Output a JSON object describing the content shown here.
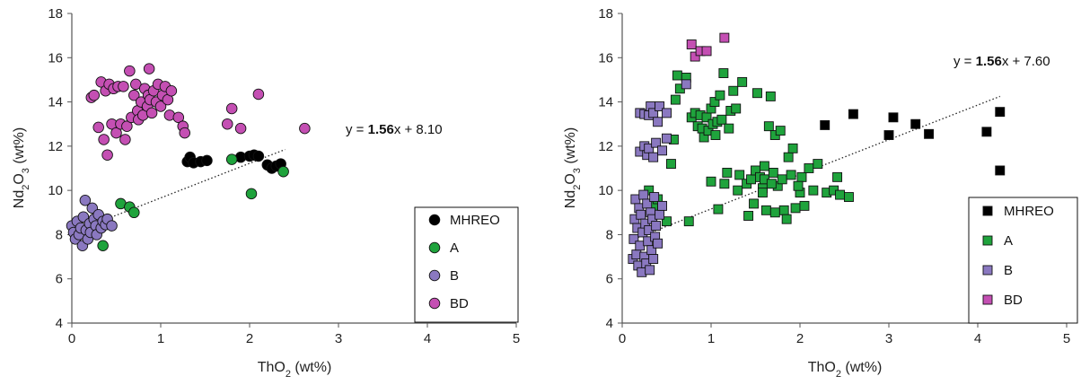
{
  "chart_data": [
    {
      "type": "scatter",
      "marker": "circle",
      "xlabel": "ThO2 (wt%)",
      "ylabel": "Nd2O3 (wt%)",
      "xlim": [
        0,
        5
      ],
      "ylim": [
        4,
        18
      ],
      "xticks": [
        "0",
        "1",
        "2",
        "3",
        "4",
        "5"
      ],
      "yticks": [
        "4",
        "6",
        "8",
        "10",
        "12",
        "14",
        "16",
        "18"
      ],
      "grid": false,
      "legend_position": "bottom-right",
      "equation": {
        "prefix": "y = ",
        "slope": "1.56",
        "suffix": "x + 8.10"
      },
      "trendline": {
        "x": [
          0.1,
          2.4
        ],
        "y": [
          8.25,
          11.85
        ]
      },
      "series": [
        {
          "name": "MHREO",
          "color": "#000000",
          "points": [
            [
              1.3,
              11.3
            ],
            [
              1.33,
              11.5
            ],
            [
              1.37,
              11.25
            ],
            [
              1.45,
              11.3
            ],
            [
              1.52,
              11.35
            ],
            [
              1.9,
              11.5
            ],
            [
              2.0,
              11.55
            ],
            [
              2.05,
              11.6
            ],
            [
              2.1,
              11.55
            ],
            [
              2.2,
              11.15
            ],
            [
              2.25,
              11.0
            ],
            [
              2.3,
              11.1
            ],
            [
              2.35,
              11.2
            ]
          ]
        },
        {
          "name": "A",
          "color": "#1fa33c",
          "points": [
            [
              0.35,
              7.5
            ],
            [
              0.55,
              9.4
            ],
            [
              0.65,
              9.25
            ],
            [
              0.7,
              9.0
            ],
            [
              1.8,
              11.4
            ],
            [
              2.02,
              9.85
            ],
            [
              2.38,
              10.85
            ]
          ]
        },
        {
          "name": "B",
          "color": "#8a78c0",
          "points": [
            [
              0.0,
              8.4
            ],
            [
              0.02,
              8.1
            ],
            [
              0.04,
              7.8
            ],
            [
              0.06,
              8.6
            ],
            [
              0.08,
              8.0
            ],
            [
              0.1,
              8.3
            ],
            [
              0.12,
              7.5
            ],
            [
              0.13,
              8.8
            ],
            [
              0.15,
              9.55
            ],
            [
              0.16,
              8.2
            ],
            [
              0.18,
              7.8
            ],
            [
              0.2,
              8.5
            ],
            [
              0.21,
              8.1
            ],
            [
              0.23,
              9.2
            ],
            [
              0.25,
              8.7
            ],
            [
              0.27,
              8.4
            ],
            [
              0.28,
              8.0
            ],
            [
              0.3,
              8.9
            ],
            [
              0.33,
              8.3
            ],
            [
              0.35,
              8.6
            ],
            [
              0.38,
              8.45
            ],
            [
              0.4,
              8.7
            ],
            [
              0.45,
              8.4
            ]
          ]
        },
        {
          "name": "BD",
          "color": "#c44fb3",
          "points": [
            [
              0.22,
              14.2
            ],
            [
              0.25,
              14.3
            ],
            [
              0.3,
              12.85
            ],
            [
              0.33,
              14.9
            ],
            [
              0.36,
              12.3
            ],
            [
              0.38,
              14.5
            ],
            [
              0.4,
              11.6
            ],
            [
              0.42,
              14.8
            ],
            [
              0.45,
              13.0
            ],
            [
              0.47,
              14.6
            ],
            [
              0.5,
              12.6
            ],
            [
              0.52,
              14.7
            ],
            [
              0.55,
              13.0
            ],
            [
              0.58,
              14.7
            ],
            [
              0.6,
              12.3
            ],
            [
              0.62,
              12.9
            ],
            [
              0.65,
              15.4
            ],
            [
              0.67,
              13.3
            ],
            [
              0.7,
              14.3
            ],
            [
              0.72,
              14.8
            ],
            [
              0.74,
              13.6
            ],
            [
              0.75,
              13.2
            ],
            [
              0.78,
              14.0
            ],
            [
              0.8,
              13.4
            ],
            [
              0.82,
              14.6
            ],
            [
              0.85,
              13.8
            ],
            [
              0.86,
              14.3
            ],
            [
              0.87,
              15.5
            ],
            [
              0.88,
              14.1
            ],
            [
              0.9,
              13.5
            ],
            [
              0.92,
              14.5
            ],
            [
              0.95,
              14.0
            ],
            [
              0.97,
              14.8
            ],
            [
              1.0,
              13.8
            ],
            [
              1.02,
              14.3
            ],
            [
              1.05,
              14.7
            ],
            [
              1.08,
              14.1
            ],
            [
              1.1,
              13.4
            ],
            [
              1.12,
              14.5
            ],
            [
              1.2,
              13.3
            ],
            [
              1.25,
              12.9
            ],
            [
              1.27,
              12.6
            ],
            [
              1.75,
              13.0
            ],
            [
              1.8,
              13.7
            ],
            [
              1.9,
              12.8
            ],
            [
              2.1,
              14.35
            ],
            [
              2.62,
              12.8
            ]
          ]
        }
      ]
    },
    {
      "type": "scatter",
      "marker": "square",
      "xlabel": "ThO2 (wt%)",
      "ylabel": "Nd2O3 (wt%)",
      "xlim": [
        0,
        5
      ],
      "ylim": [
        4,
        18
      ],
      "xticks": [
        "0",
        "1",
        "2",
        "3",
        "4",
        "5"
      ],
      "yticks": [
        "4",
        "6",
        "8",
        "10",
        "12",
        "14",
        "16",
        "18"
      ],
      "grid": false,
      "legend_position": "bottom-right",
      "equation": {
        "prefix": "y = ",
        "slope": "1.56",
        "suffix": "x + 7.60"
      },
      "trendline": {
        "x": [
          0.1,
          4.25
        ],
        "y": [
          7.75,
          14.25
        ]
      },
      "series": [
        {
          "name": "MHREO",
          "color": "#000000",
          "points": [
            [
              2.28,
              12.95
            ],
            [
              2.6,
              13.45
            ],
            [
              3.0,
              12.5
            ],
            [
              3.05,
              13.3
            ],
            [
              3.3,
              13.0
            ],
            [
              3.45,
              12.55
            ],
            [
              4.1,
              12.65
            ],
            [
              4.25,
              13.55
            ],
            [
              4.25,
              10.9
            ]
          ]
        },
        {
          "name": "A",
          "color": "#1fa33c",
          "points": [
            [
              0.3,
              10.0
            ],
            [
              0.35,
              9.3
            ],
            [
              0.4,
              9.6
            ],
            [
              0.5,
              8.6
            ],
            [
              0.55,
              11.2
            ],
            [
              0.58,
              12.3
            ],
            [
              0.6,
              14.1
            ],
            [
              0.62,
              15.2
            ],
            [
              0.65,
              14.6
            ],
            [
              0.72,
              15.1
            ],
            [
              0.75,
              8.6
            ],
            [
              0.78,
              13.3
            ],
            [
              0.82,
              13.5
            ],
            [
              0.85,
              12.9
            ],
            [
              0.88,
              13.4
            ],
            [
              0.9,
              12.8
            ],
            [
              0.92,
              12.4
            ],
            [
              0.95,
              13.3
            ],
            [
              0.97,
              12.7
            ],
            [
              1.0,
              13.7
            ],
            [
              1.0,
              10.4
            ],
            [
              1.02,
              13.0
            ],
            [
              1.04,
              14.0
            ],
            [
              1.05,
              12.5
            ],
            [
              1.07,
              13.1
            ],
            [
              1.08,
              9.15
            ],
            [
              1.1,
              14.3
            ],
            [
              1.12,
              13.2
            ],
            [
              1.14,
              15.3
            ],
            [
              1.15,
              10.3
            ],
            [
              1.18,
              10.8
            ],
            [
              1.2,
              12.8
            ],
            [
              1.22,
              13.6
            ],
            [
              1.25,
              14.5
            ],
            [
              1.28,
              13.7
            ],
            [
              1.3,
              10.0
            ],
            [
              1.32,
              10.7
            ],
            [
              1.35,
              14.9
            ],
            [
              1.4,
              10.3
            ],
            [
              1.45,
              10.5
            ],
            [
              1.48,
              9.4
            ],
            [
              1.5,
              10.9
            ],
            [
              1.52,
              14.4
            ],
            [
              1.55,
              10.6
            ],
            [
              1.58,
              10.1
            ],
            [
              1.6,
              10.5
            ],
            [
              1.62,
              9.1
            ],
            [
              1.65,
              12.9
            ],
            [
              1.67,
              14.25
            ],
            [
              1.7,
              10.8
            ],
            [
              1.72,
              12.5
            ],
            [
              1.75,
              10.2
            ],
            [
              1.78,
              12.7
            ],
            [
              1.8,
              10.5
            ],
            [
              1.82,
              9.1
            ],
            [
              1.85,
              8.7
            ],
            [
              1.87,
              11.5
            ],
            [
              1.9,
              10.7
            ],
            [
              1.92,
              11.9
            ],
            [
              1.95,
              9.2
            ],
            [
              2.0,
              9.9
            ],
            [
              2.02,
              10.6
            ],
            [
              2.05,
              9.3
            ],
            [
              2.1,
              11.0
            ],
            [
              2.15,
              10.0
            ],
            [
              2.2,
              11.2
            ],
            [
              2.3,
              9.9
            ],
            [
              2.38,
              10.0
            ],
            [
              2.42,
              10.6
            ],
            [
              2.45,
              9.8
            ],
            [
              2.55,
              9.7
            ],
            [
              1.98,
              10.2
            ],
            [
              1.6,
              11.1
            ],
            [
              1.58,
              9.9
            ],
            [
              1.42,
              8.85
            ],
            [
              1.68,
              10.3
            ],
            [
              1.72,
              9.0
            ]
          ]
        },
        {
          "name": "B",
          "color": "#8a78c0",
          "points": [
            [
              0.12,
              6.9
            ],
            [
              0.13,
              7.8
            ],
            [
              0.14,
              8.7
            ],
            [
              0.15,
              9.6
            ],
            [
              0.16,
              7.1
            ],
            [
              0.17,
              8.3
            ],
            [
              0.18,
              6.6
            ],
            [
              0.19,
              9.2
            ],
            [
              0.2,
              7.5
            ],
            [
              0.21,
              8.9
            ],
            [
              0.22,
              6.3
            ],
            [
              0.23,
              8.1
            ],
            [
              0.24,
              9.8
            ],
            [
              0.25,
              7.0
            ],
            [
              0.26,
              8.5
            ],
            [
              0.27,
              6.7
            ],
            [
              0.28,
              9.4
            ],
            [
              0.29,
              7.7
            ],
            [
              0.3,
              8.2
            ],
            [
              0.31,
              6.4
            ],
            [
              0.32,
              9.0
            ],
            [
              0.33,
              7.3
            ],
            [
              0.34,
              8.7
            ],
            [
              0.35,
              6.9
            ],
            [
              0.36,
              9.7
            ],
            [
              0.37,
              7.9
            ],
            [
              0.38,
              8.4
            ],
            [
              0.4,
              7.6
            ],
            [
              0.42,
              8.9
            ],
            [
              0.45,
              9.3
            ],
            [
              0.2,
              11.75
            ],
            [
              0.25,
              12.0
            ],
            [
              0.28,
              11.6
            ],
            [
              0.3,
              11.9
            ],
            [
              0.35,
              11.5
            ],
            [
              0.38,
              12.15
            ],
            [
              0.45,
              11.8
            ],
            [
              0.5,
              12.35
            ],
            [
              0.2,
              13.5
            ],
            [
              0.25,
              13.45
            ],
            [
              0.3,
              13.4
            ],
            [
              0.32,
              13.8
            ],
            [
              0.35,
              13.5
            ],
            [
              0.4,
              13.1
            ],
            [
              0.42,
              13.8
            ],
            [
              0.5,
              13.5
            ],
            [
              0.72,
              14.8
            ]
          ]
        },
        {
          "name": "BD",
          "color": "#c44fb3",
          "points": [
            [
              0.78,
              16.6
            ],
            [
              0.82,
              16.05
            ],
            [
              0.88,
              16.3
            ],
            [
              0.95,
              16.3
            ],
            [
              1.15,
              16.9
            ]
          ]
        }
      ]
    }
  ]
}
